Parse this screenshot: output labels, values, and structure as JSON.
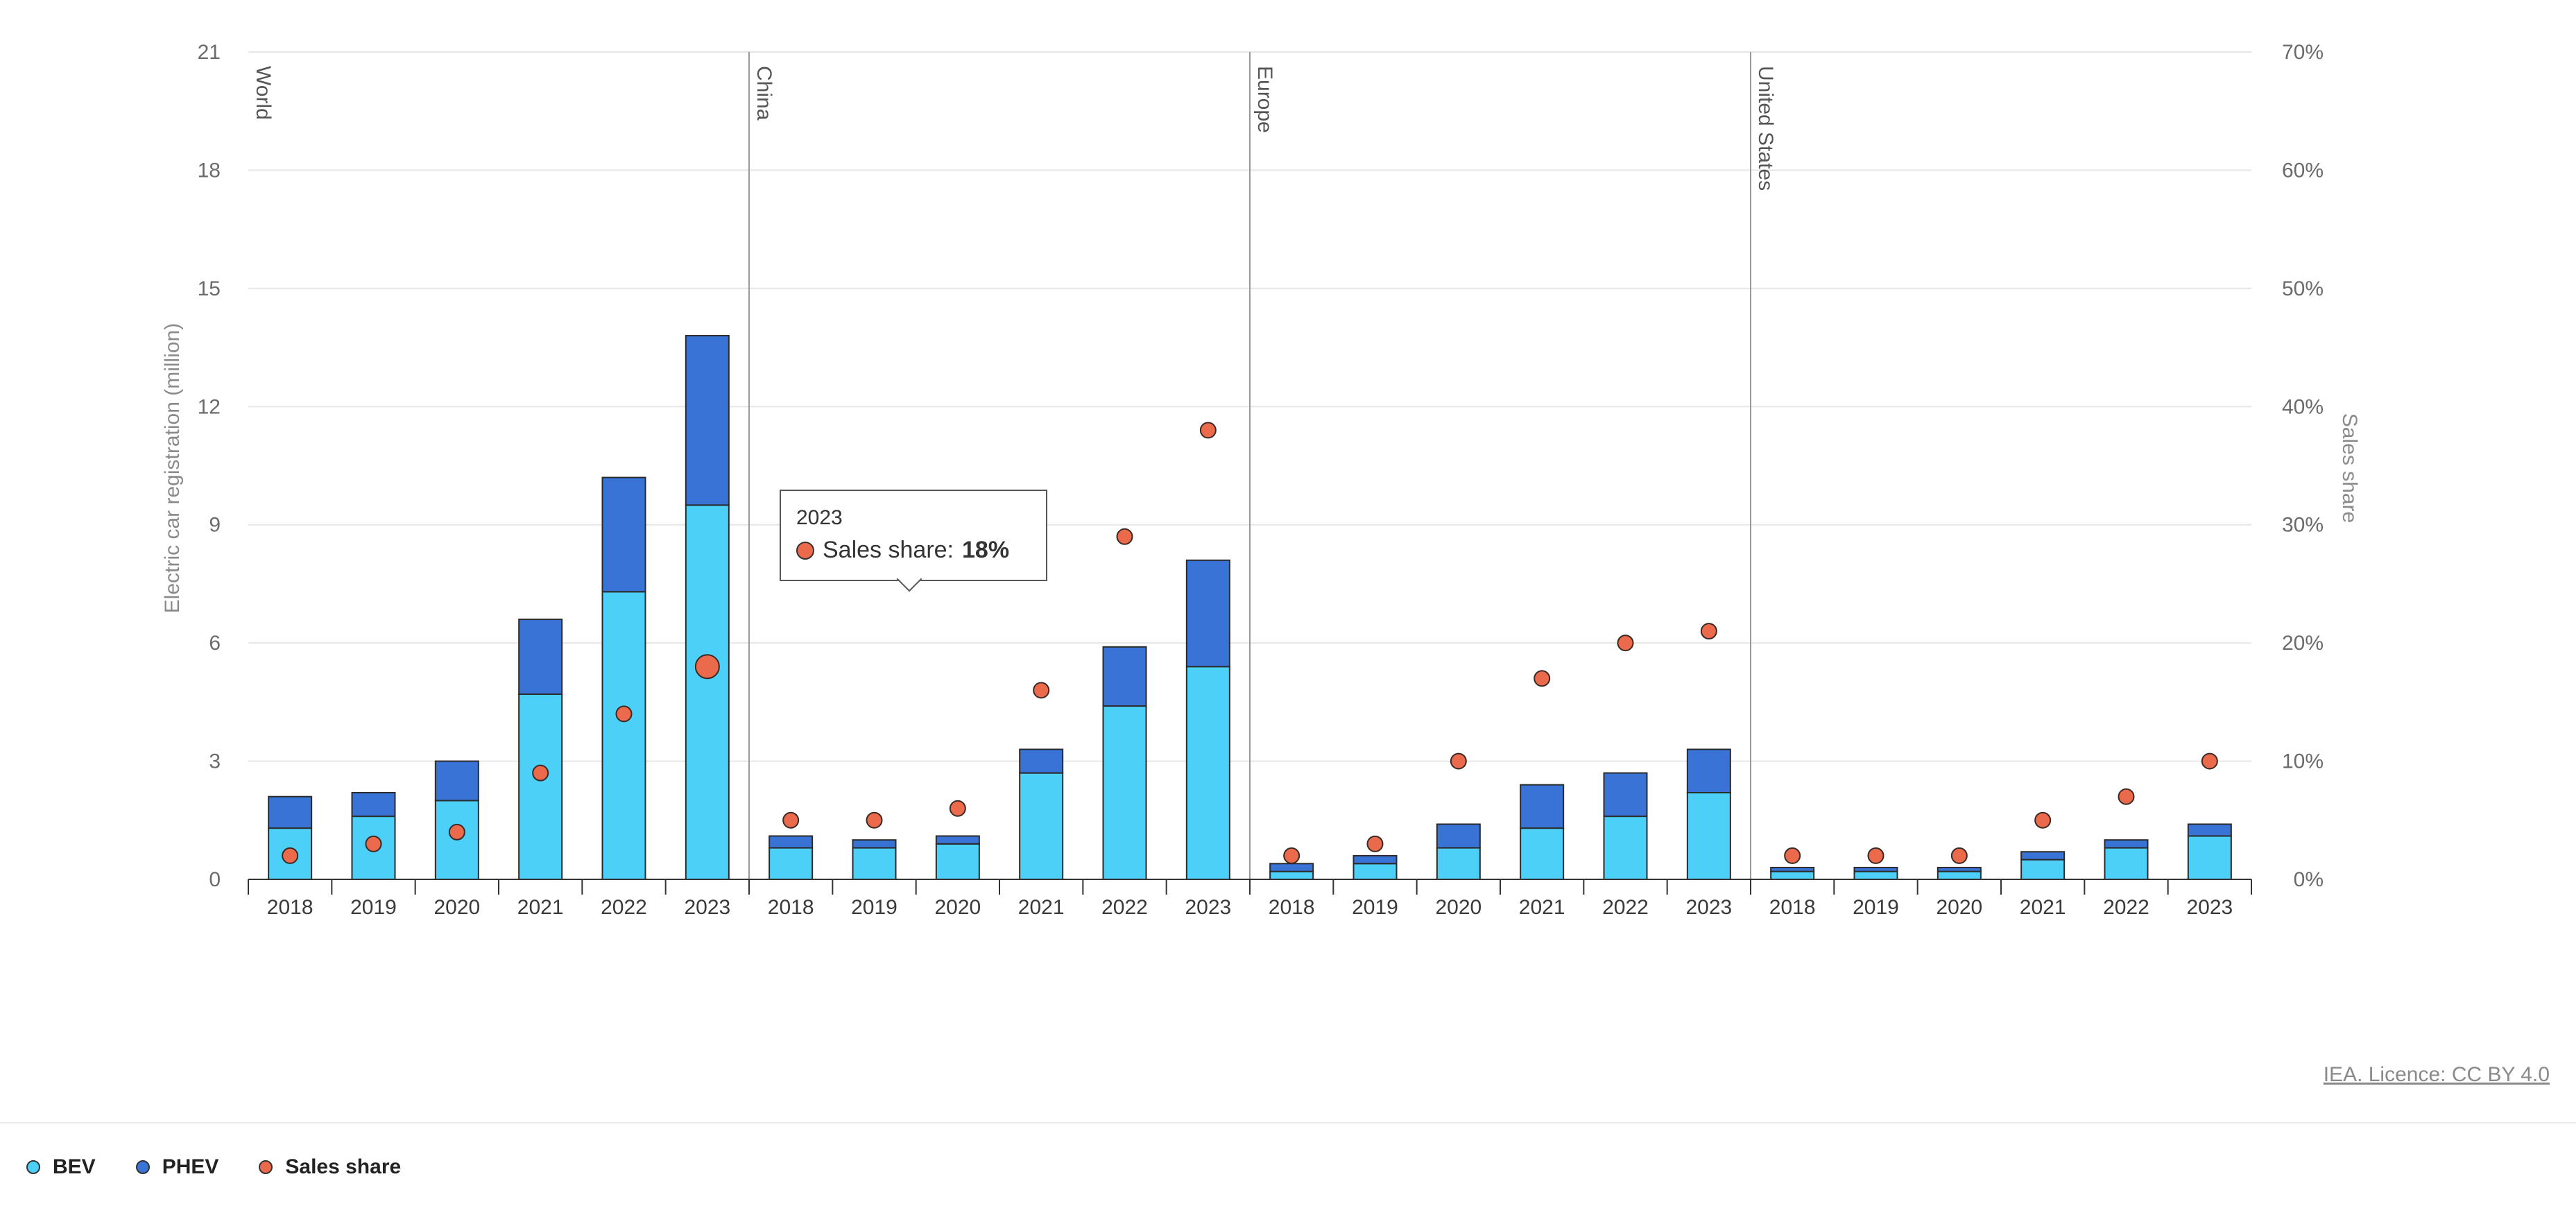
{
  "colors": {
    "bev": "#4dd0f7",
    "phev": "#3a73d6",
    "share": "#ec6a4c",
    "grid": "#e6e6e6"
  },
  "chart_data": {
    "type": "bar",
    "stacked": true,
    "ylabel": "Electric car registration (million)",
    "y2label": "Sales share",
    "ylim": [
      0,
      21
    ],
    "y2lim": [
      0,
      70
    ],
    "y_ticks": [
      "0",
      "3",
      "6",
      "9",
      "12",
      "15",
      "18",
      "21"
    ],
    "y2_ticks": [
      "0%",
      "10%",
      "20%",
      "30%",
      "40%",
      "50%",
      "60%",
      "70%"
    ],
    "grid": true,
    "legend_position": "bottom-left",
    "regions": [
      {
        "name": "World",
        "years": [
          "2018",
          "2019",
          "2020",
          "2021",
          "2022",
          "2023"
        ],
        "bev": [
          1.3,
          1.6,
          2.0,
          4.7,
          7.3,
          9.5
        ],
        "phev": [
          0.8,
          0.6,
          1.0,
          1.9,
          2.9,
          4.3
        ],
        "share": [
          2,
          3,
          4,
          9,
          14,
          18
        ]
      },
      {
        "name": "China",
        "years": [
          "2018",
          "2019",
          "2020",
          "2021",
          "2022",
          "2023"
        ],
        "bev": [
          0.8,
          0.8,
          0.9,
          2.7,
          4.4,
          5.4
        ],
        "phev": [
          0.3,
          0.2,
          0.2,
          0.6,
          1.5,
          2.7
        ],
        "share": [
          5,
          5,
          6,
          16,
          29,
          38
        ]
      },
      {
        "name": "Europe",
        "years": [
          "2018",
          "2019",
          "2020",
          "2021",
          "2022",
          "2023"
        ],
        "bev": [
          0.2,
          0.4,
          0.8,
          1.3,
          1.6,
          2.2
        ],
        "phev": [
          0.2,
          0.2,
          0.6,
          1.1,
          1.1,
          1.1
        ],
        "share": [
          2,
          3,
          10,
          17,
          20,
          21
        ]
      },
      {
        "name": "United States",
        "years": [
          "2018",
          "2019",
          "2020",
          "2021",
          "2022",
          "2023"
        ],
        "bev": [
          0.2,
          0.2,
          0.2,
          0.5,
          0.8,
          1.1
        ],
        "phev": [
          0.1,
          0.1,
          0.1,
          0.2,
          0.2,
          0.3
        ],
        "share": [
          2,
          2,
          2,
          5,
          7,
          10
        ]
      }
    ],
    "highlight": {
      "region": "World",
      "year": "2023"
    },
    "tooltip": {
      "year": "2023",
      "label": "Sales share: ",
      "value": "18%"
    },
    "legend": [
      {
        "name": "BEV",
        "key": "bev"
      },
      {
        "name": "PHEV",
        "key": "phev"
      },
      {
        "name": "Sales share",
        "key": "share"
      }
    ]
  },
  "source": {
    "text": "IEA. Licence: CC BY 4.0"
  }
}
